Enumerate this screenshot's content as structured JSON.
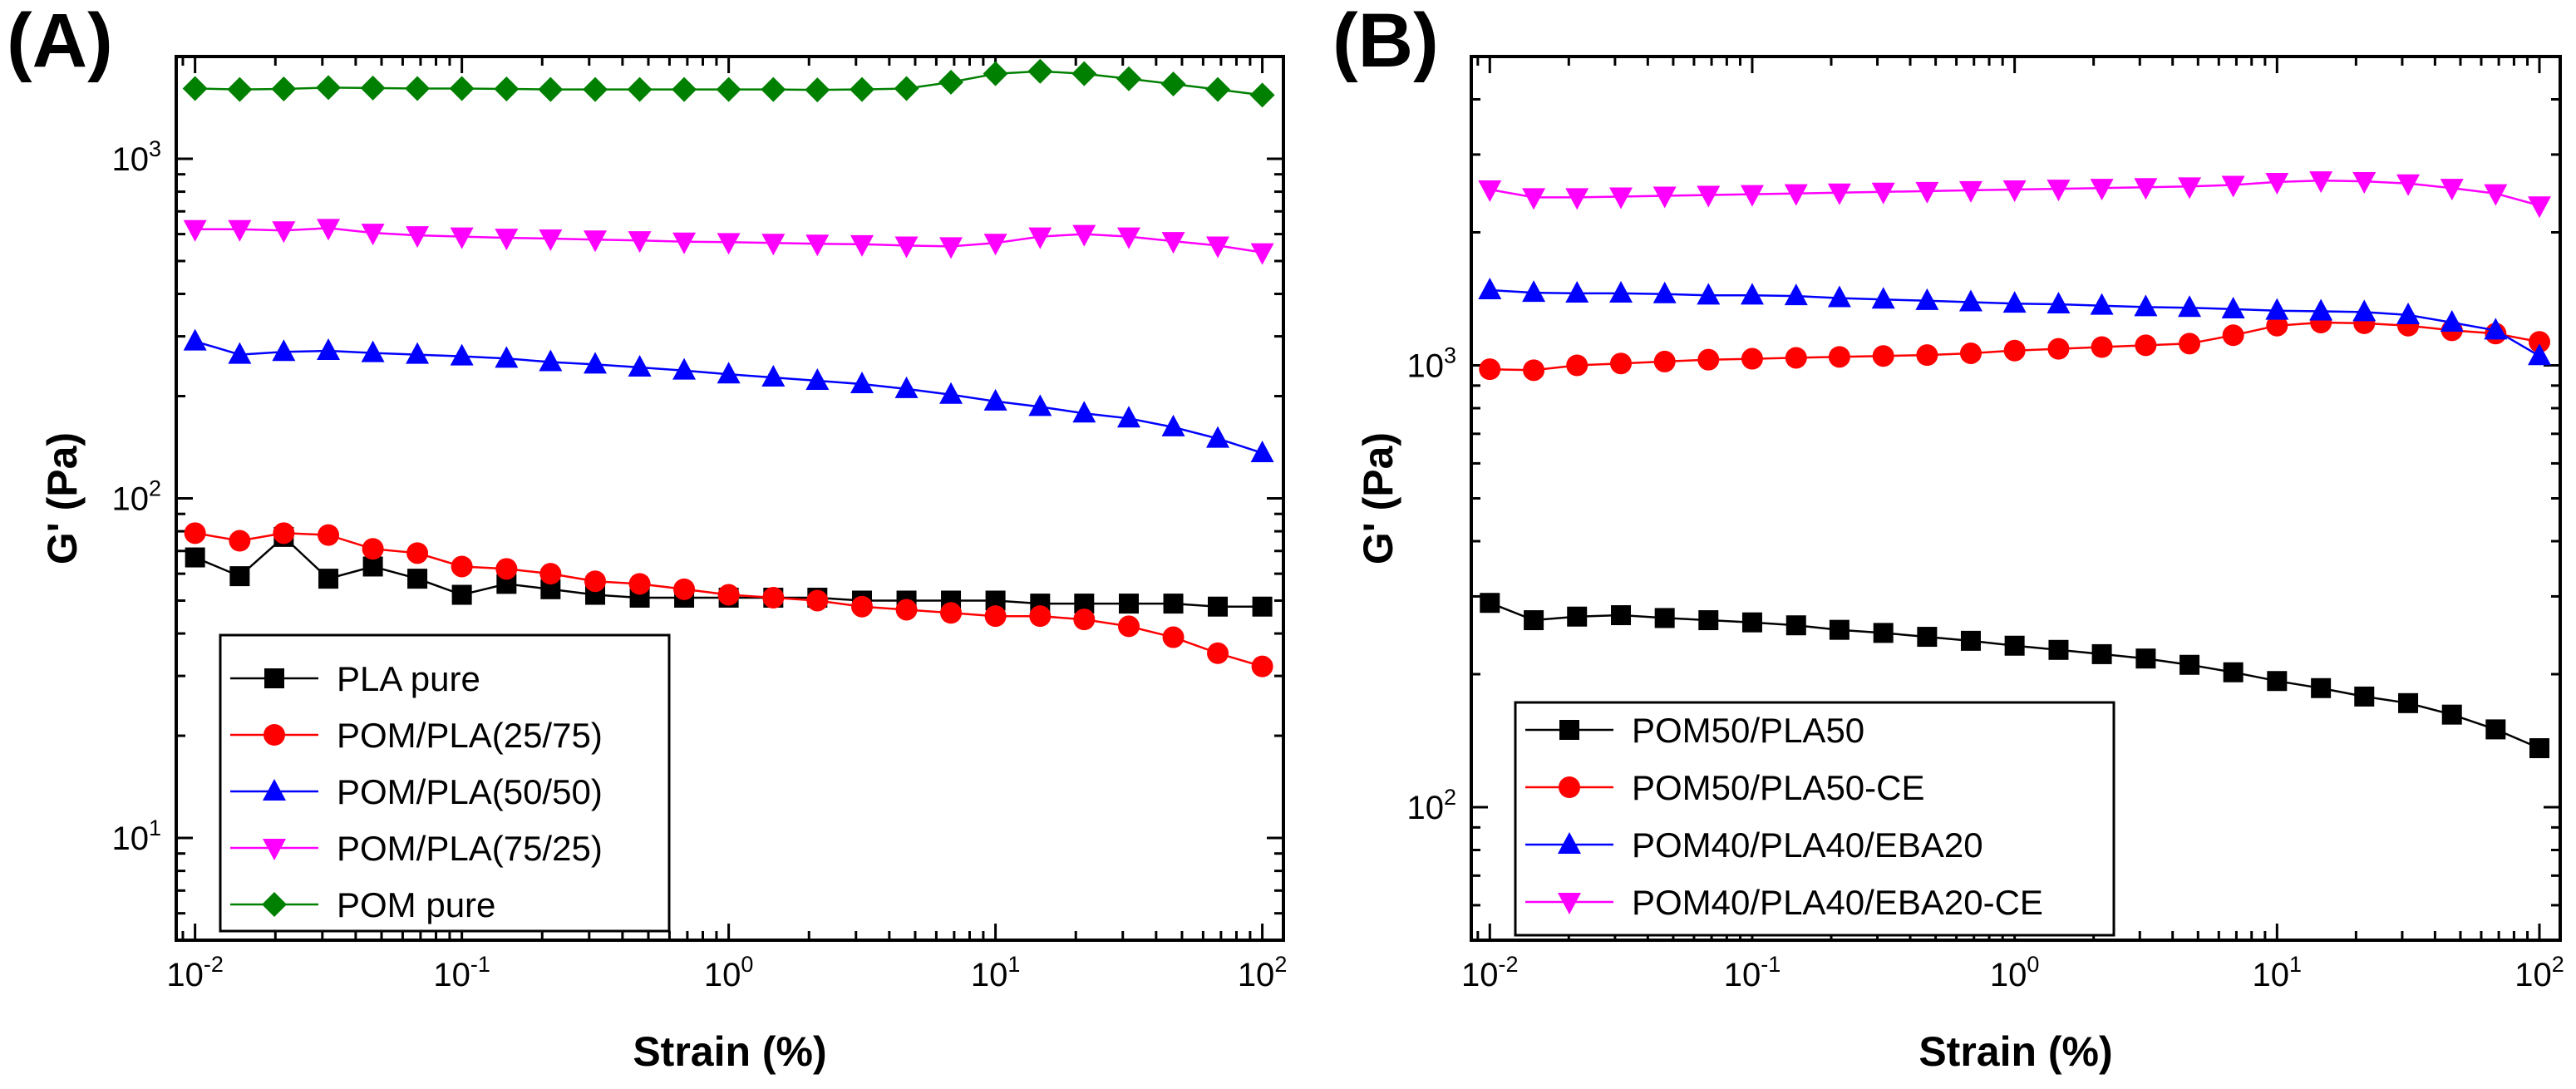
{
  "chart_data": [
    {
      "panel_label": "(A)",
      "type": "line",
      "x_scale": "log",
      "y_scale": "log",
      "xlabel": "Strain (%)",
      "ylabel": "G' (Pa)",
      "xlim": [
        0.0085,
        120
      ],
      "ylim": [
        5,
        2000
      ],
      "x_ticks": [
        {
          "base": "10",
          "exp": "-2",
          "value": 0.01
        },
        {
          "base": "10",
          "exp": "-1",
          "value": 0.1
        },
        {
          "base": "10",
          "exp": "0",
          "value": 1
        },
        {
          "base": "10",
          "exp": "1",
          "value": 10
        },
        {
          "base": "10",
          "exp": "2",
          "value": 100
        }
      ],
      "y_ticks": [
        {
          "base": "10",
          "exp": "1",
          "value": 10
        },
        {
          "base": "10",
          "exp": "2",
          "value": 100
        },
        {
          "base": "10",
          "exp": "3",
          "value": 1000
        }
      ],
      "x": [
        0.01,
        0.0147,
        0.0215,
        0.0316,
        0.0464,
        0.0681,
        0.1,
        0.147,
        0.215,
        0.316,
        0.464,
        0.681,
        1,
        1.47,
        2.15,
        3.16,
        4.64,
        6.81,
        10,
        14.7,
        21.5,
        31.6,
        46.4,
        68.1,
        100
      ],
      "series": [
        {
          "name": "PLA pure",
          "color": "#000000",
          "marker": "square",
          "values": [
            67,
            59,
            77,
            58,
            63,
            58,
            52,
            56,
            54,
            52,
            51,
            51,
            51,
            51,
            51,
            50,
            50,
            50,
            50,
            49,
            49,
            49,
            49,
            48,
            48
          ]
        },
        {
          "name": "POM/PLA(25/75)",
          "color": "#ff0000",
          "marker": "circle",
          "values": [
            79,
            75,
            79,
            78,
            71,
            69,
            63,
            62,
            60,
            57,
            56,
            54,
            52,
            51,
            50,
            48,
            47,
            46,
            45,
            45,
            44,
            42,
            39,
            35,
            32
          ]
        },
        {
          "name": "POM/PLA(50/50)",
          "color": "#0000ff",
          "marker": "triangle-up",
          "values": [
            290,
            265,
            270,
            272,
            268,
            265,
            262,
            258,
            252,
            248,
            243,
            238,
            232,
            227,
            222,
            217,
            210,
            202,
            193,
            186,
            178,
            172,
            162,
            150,
            136
          ]
        },
        {
          "name": "POM/PLA(75/25)",
          "color": "#ff00ff",
          "marker": "triangle-down",
          "values": [
            620,
            620,
            615,
            625,
            605,
            595,
            590,
            585,
            582,
            578,
            575,
            570,
            568,
            565,
            562,
            560,
            555,
            552,
            565,
            590,
            600,
            590,
            572,
            555,
            530
          ]
        },
        {
          "name": "POM pure",
          "color": "#008000",
          "marker": "diamond",
          "values": [
            1610,
            1600,
            1605,
            1620,
            1615,
            1610,
            1610,
            1605,
            1600,
            1600,
            1600,
            1600,
            1600,
            1600,
            1595,
            1600,
            1610,
            1680,
            1780,
            1810,
            1780,
            1720,
            1660,
            1600,
            1540
          ]
        }
      ]
    },
    {
      "panel_label": "(B)",
      "type": "line",
      "x_scale": "log",
      "y_scale": "log",
      "xlabel": "Strain (%)",
      "ylabel": "G' (Pa)",
      "xlim": [
        0.0085,
        120
      ],
      "ylim": [
        50,
        5000
      ],
      "x_ticks": [
        {
          "base": "10",
          "exp": "-2",
          "value": 0.01
        },
        {
          "base": "10",
          "exp": "-1",
          "value": 0.1
        },
        {
          "base": "10",
          "exp": "0",
          "value": 1
        },
        {
          "base": "10",
          "exp": "1",
          "value": 10
        },
        {
          "base": "10",
          "exp": "2",
          "value": 100
        }
      ],
      "y_ticks": [
        {
          "base": "10",
          "exp": "2",
          "value": 100
        },
        {
          "base": "10",
          "exp": "3",
          "value": 1000
        }
      ],
      "x": [
        0.01,
        0.0147,
        0.0215,
        0.0316,
        0.0464,
        0.0681,
        0.1,
        0.147,
        0.215,
        0.316,
        0.464,
        0.681,
        1,
        1.47,
        2.15,
        3.16,
        4.64,
        6.81,
        10,
        14.7,
        21.5,
        31.6,
        46.4,
        68.1,
        100
      ],
      "series": [
        {
          "name": "POM50/PLA50",
          "color": "#000000",
          "marker": "square",
          "values": [
            290,
            265,
            270,
            272,
            268,
            265,
            262,
            258,
            252,
            248,
            243,
            238,
            232,
            227,
            222,
            217,
            210,
            202,
            193,
            186,
            178,
            172,
            162,
            150,
            136
          ]
        },
        {
          "name": "POM50/PLA50-CE",
          "color": "#ff0000",
          "marker": "circle",
          "values": [
            980,
            975,
            1000,
            1010,
            1020,
            1030,
            1035,
            1040,
            1045,
            1050,
            1055,
            1065,
            1080,
            1090,
            1100,
            1110,
            1120,
            1170,
            1230,
            1250,
            1245,
            1230,
            1200,
            1180,
            1130
          ]
        },
        {
          "name": "POM40/PLA40/EBA20",
          "color": "#0000ff",
          "marker": "triangle-up",
          "values": [
            1480,
            1460,
            1455,
            1455,
            1450,
            1440,
            1440,
            1435,
            1420,
            1410,
            1400,
            1390,
            1380,
            1375,
            1365,
            1355,
            1350,
            1340,
            1330,
            1325,
            1320,
            1300,
            1250,
            1200,
            1050
          ]
        },
        {
          "name": "POM40/PLA40/EBA20-CE",
          "color": "#ff00ff",
          "marker": "triangle-down",
          "values": [
            2500,
            2400,
            2400,
            2410,
            2420,
            2430,
            2440,
            2450,
            2460,
            2470,
            2480,
            2490,
            2500,
            2510,
            2520,
            2530,
            2540,
            2560,
            2600,
            2620,
            2610,
            2580,
            2520,
            2450,
            2300
          ]
        }
      ]
    }
  ]
}
